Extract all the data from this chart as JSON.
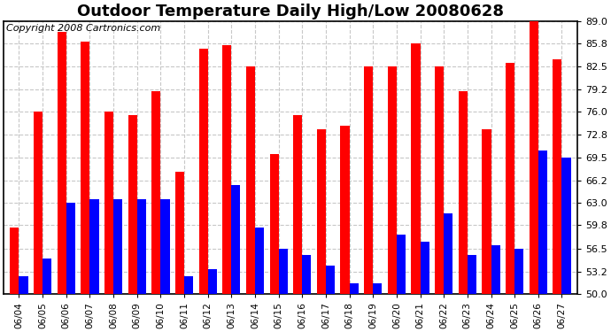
{
  "title": "Outdoor Temperature Daily High/Low 20080628",
  "copyright": "Copyright 2008 Cartronics.com",
  "categories": [
    "06/04",
    "06/05",
    "06/06",
    "06/07",
    "06/08",
    "06/09",
    "06/10",
    "06/11",
    "06/12",
    "06/13",
    "06/14",
    "06/15",
    "06/16",
    "06/17",
    "06/18",
    "06/19",
    "06/20",
    "06/21",
    "06/22",
    "06/23",
    "06/24",
    "06/25",
    "06/26",
    "06/27"
  ],
  "highs": [
    59.5,
    76.0,
    87.5,
    86.0,
    76.0,
    75.5,
    79.0,
    67.5,
    85.0,
    85.5,
    82.5,
    70.0,
    75.5,
    73.5,
    74.0,
    82.5,
    82.5,
    85.8,
    82.5,
    79.0,
    73.5,
    83.0,
    89.0,
    83.5
  ],
  "lows": [
    52.5,
    55.0,
    63.0,
    63.5,
    63.5,
    63.5,
    63.5,
    52.5,
    53.5,
    65.5,
    59.5,
    56.5,
    55.5,
    54.0,
    51.5,
    51.5,
    58.5,
    57.5,
    61.5,
    55.5,
    57.0,
    56.5,
    70.5,
    69.5
  ],
  "ylim": [
    50.0,
    89.0
  ],
  "yticks": [
    50.0,
    53.2,
    56.5,
    59.8,
    63.0,
    66.2,
    69.5,
    72.8,
    76.0,
    79.2,
    82.5,
    85.8,
    89.0
  ],
  "bar_color_high": "#ff0000",
  "bar_color_low": "#0000ff",
  "background_color": "#ffffff",
  "plot_bg_color": "#ffffff",
  "grid_color": "#c8c8c8",
  "title_fontsize": 13,
  "copyright_fontsize": 8,
  "bar_width": 0.38
}
